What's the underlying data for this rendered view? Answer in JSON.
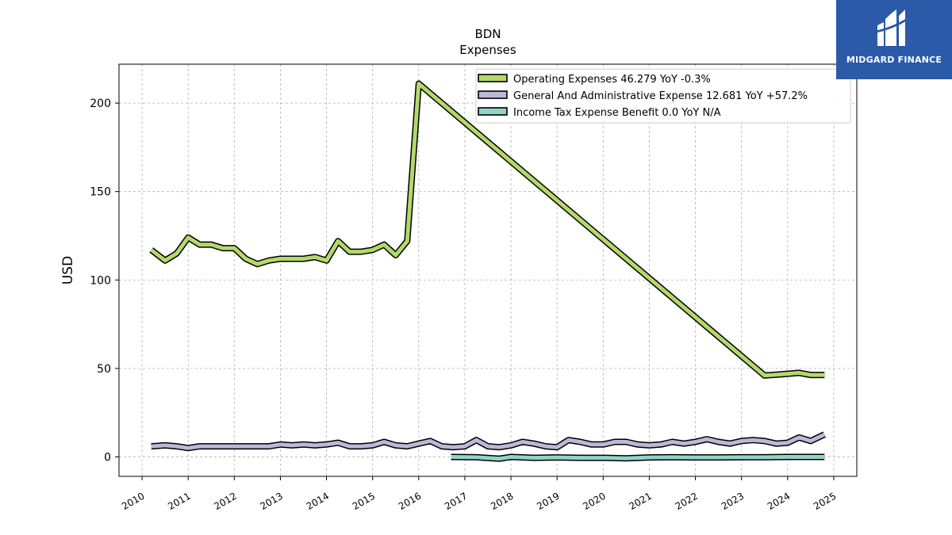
{
  "brand": {
    "name": "MIDGARD FINANCE",
    "icon": "midgard-logo-icon",
    "color": "#2a5aa8"
  },
  "chart_data": {
    "type": "line",
    "title": "BDN",
    "subtitle": "Expenses",
    "ylabel": "USD",
    "xlabel": "",
    "xlim": [
      2009.5,
      2025.5
    ],
    "ylim": [
      -11,
      222
    ],
    "yticks": [
      0,
      50,
      100,
      150,
      200
    ],
    "xticks": [
      "2010",
      "2011",
      "2012",
      "2013",
      "2014",
      "2015",
      "2016",
      "2017",
      "2018",
      "2019",
      "2020",
      "2021",
      "2022",
      "2023",
      "2024",
      "2025"
    ],
    "grid": true,
    "legend_position": "top-right",
    "series": [
      {
        "name": "Operating Expenses",
        "legend_label": "Operating Expenses  46.279 YoY -0.3%",
        "color": "#b2d96a",
        "x": [
          2010.2,
          2010.5,
          2010.75,
          2011.0,
          2011.25,
          2011.5,
          2011.75,
          2012.0,
          2012.25,
          2012.5,
          2012.75,
          2013.0,
          2013.25,
          2013.5,
          2013.75,
          2014.0,
          2014.25,
          2014.5,
          2014.75,
          2015.0,
          2015.25,
          2015.5,
          2015.75,
          2016.0,
          2023.5,
          2023.75,
          2024.0,
          2024.25,
          2024.5,
          2024.8
        ],
        "y": [
          117,
          111,
          115,
          124,
          120,
          120,
          118,
          118,
          112,
          109,
          111,
          112,
          112,
          112,
          113,
          111,
          122,
          116,
          116,
          117,
          120,
          114,
          122,
          211,
          46,
          46.5,
          47,
          47.5,
          46.3,
          46.3
        ]
      },
      {
        "name": "General And Administrative Expense",
        "legend_label": "General And Administrative Expense  12.681 YoY +57.2%",
        "color": "#bcb8d8",
        "x": [
          2010.2,
          2010.5,
          2010.75,
          2011.0,
          2011.25,
          2011.5,
          2011.75,
          2012.0,
          2012.25,
          2012.5,
          2012.75,
          2013.0,
          2013.25,
          2013.5,
          2013.75,
          2014.0,
          2014.25,
          2014.5,
          2014.75,
          2015.0,
          2015.25,
          2015.5,
          2015.75,
          2016.0,
          2016.25,
          2016.5,
          2016.75,
          2017.0,
          2017.25,
          2017.5,
          2017.75,
          2018.0,
          2018.25,
          2018.5,
          2018.75,
          2019.0,
          2019.25,
          2019.5,
          2019.75,
          2020.0,
          2020.25,
          2020.5,
          2020.75,
          2021.0,
          2021.25,
          2021.5,
          2021.75,
          2022.0,
          2022.25,
          2022.5,
          2022.75,
          2023.0,
          2023.25,
          2023.5,
          2023.75,
          2024.0,
          2024.25,
          2024.5,
          2024.8
        ],
        "y": [
          6,
          6.5,
          6,
          5,
          6,
          6,
          6,
          6,
          6,
          6,
          6,
          7,
          6.5,
          7,
          6.5,
          7,
          8,
          6,
          6,
          6.5,
          8.5,
          6.5,
          6,
          7.5,
          9,
          6,
          5.5,
          6,
          9.5,
          6,
          5.5,
          6.5,
          8.5,
          7.5,
          6,
          5.5,
          9.5,
          8.5,
          7,
          7,
          8.5,
          8.5,
          7,
          6.5,
          7,
          8.5,
          7.5,
          8.5,
          10,
          8.5,
          7.5,
          9,
          9.5,
          9,
          7.5,
          8,
          11,
          9,
          12.7
        ]
      },
      {
        "name": "Income Tax Expense Benefit",
        "legend_label": "Income Tax Expense Benefit  0.0 YoY N/A",
        "color": "#8fd4c7",
        "x": [
          2016.7,
          2017.25,
          2017.75,
          2018.0,
          2018.5,
          2019.0,
          2019.5,
          2020.0,
          2020.5,
          2021.0,
          2021.5,
          2022.0,
          2022.5,
          2023.0,
          2023.5,
          2024.0,
          2024.8
        ],
        "y": [
          0,
          -0.2,
          -1,
          0,
          -0.5,
          -0.3,
          -0.5,
          -0.5,
          -0.8,
          -0.3,
          -0.2,
          -0.3,
          -0.3,
          -0.2,
          -0.2,
          0,
          0
        ]
      }
    ]
  }
}
